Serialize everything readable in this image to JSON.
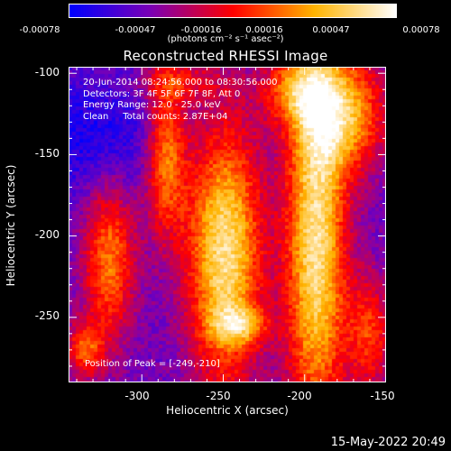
{
  "colorbar": {
    "ticks": [
      "-0.00078",
      "-0.00047",
      "-0.00016",
      "0.00016",
      "0.00047",
      "0.00078"
    ],
    "units": "(photons cm⁻² s⁻¹ asec⁻²)"
  },
  "title": "Reconstructed RHESSI Image",
  "info": {
    "line1": "20-Jun-2014 08:24:56.000 to 08:30:56.000",
    "line2": "Detectors: 3F 4F 5F 6F 7F 8F, Att 0",
    "line3": "Energy Range: 12.0 - 25.0 keV",
    "line4": "Clean     Total counts: 2.87E+04"
  },
  "peak_label": "Position of Peak = [-249,-210]",
  "x_axis": {
    "label": "Heliocentric X (arcsec)",
    "ticks": [
      "-300",
      "-250",
      "-200",
      "-150"
    ]
  },
  "y_axis": {
    "label": "Heliocentric Y (arcsec)",
    "ticks": [
      "-100",
      "-150",
      "-200",
      "-250"
    ]
  },
  "timestamp": "15-May-2022 20:49",
  "chart_data": {
    "type": "heatmap",
    "title": "Reconstructed RHESSI Image",
    "xlabel": "Heliocentric X (arcsec)",
    "ylabel": "Heliocentric Y (arcsec)",
    "xlim": [
      -345,
      -150
    ],
    "ylim": [
      -290,
      -96
    ],
    "colorbar_range": [
      -0.00078,
      0.00078
    ],
    "peak": [
      -249,
      -210
    ],
    "colormap": [
      "#0000ff",
      "#7c00b4",
      "#ff0000",
      "#ffb400",
      "#ffffff"
    ],
    "sources": [
      {
        "x": -249,
        "y": -210,
        "amp": 1.0,
        "sx": 16,
        "sy": 55
      },
      {
        "x": -193,
        "y": -205,
        "amp": 1.0,
        "sx": 13,
        "sy": 80
      },
      {
        "x": -320,
        "y": -215,
        "amp": 0.65,
        "sx": 11,
        "sy": 35
      },
      {
        "x": -285,
        "y": -150,
        "amp": 0.7,
        "sx": 9,
        "sy": 35
      },
      {
        "x": -175,
        "y": -125,
        "amp": 0.75,
        "sx": 18,
        "sy": 25
      },
      {
        "x": -205,
        "y": -110,
        "amp": 0.55,
        "sx": 15,
        "sy": 15
      },
      {
        "x": -240,
        "y": -255,
        "amp": 0.5,
        "sx": 12,
        "sy": 8
      },
      {
        "x": -335,
        "y": -270,
        "amp": 0.55,
        "sx": 8,
        "sy": 12
      },
      {
        "x": -160,
        "y": -260,
        "amp": 0.5,
        "sx": 10,
        "sy": 25
      },
      {
        "x": -275,
        "y": -105,
        "amp": 0.3,
        "sx": 18,
        "sy": 8
      }
    ]
  }
}
